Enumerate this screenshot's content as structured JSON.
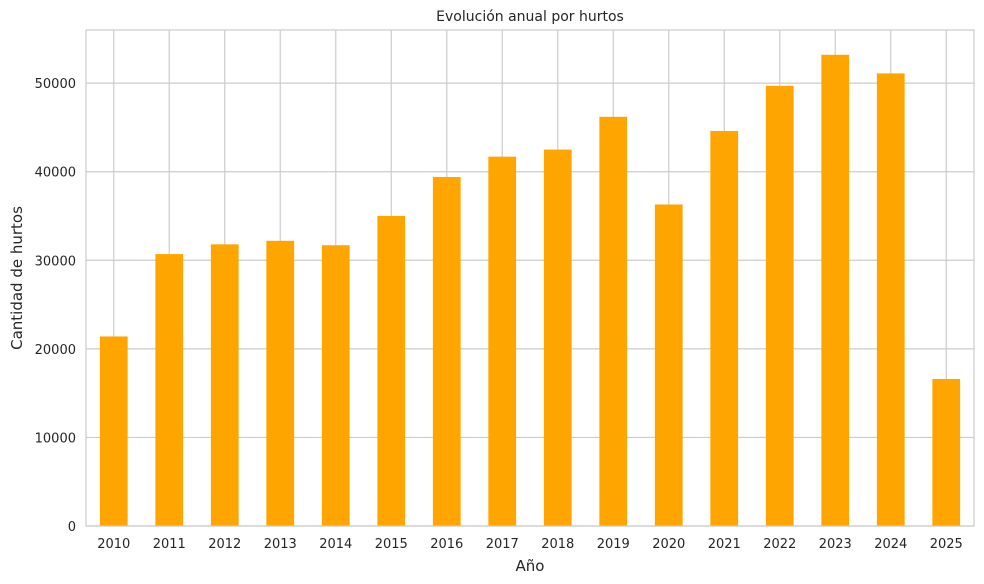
{
  "chart_data": {
    "type": "bar",
    "title": "Evolución anual por hurtos",
    "xlabel": "Año",
    "ylabel": "Cantidad de hurtos",
    "categories": [
      "2010",
      "2011",
      "2012",
      "2013",
      "2014",
      "2015",
      "2016",
      "2017",
      "2018",
      "2019",
      "2020",
      "2021",
      "2022",
      "2023",
      "2024",
      "2025"
    ],
    "values": [
      21400,
      30700,
      31800,
      32200,
      31700,
      35000,
      39400,
      41700,
      42500,
      46200,
      36300,
      44600,
      49700,
      53200,
      51100,
      16600
    ],
    "ylim": [
      0,
      56000
    ],
    "yticks": [
      0,
      10000,
      20000,
      30000,
      40000,
      50000
    ],
    "bar_color": "#FFA500",
    "grid": true,
    "grid_color": "#cccccc"
  }
}
